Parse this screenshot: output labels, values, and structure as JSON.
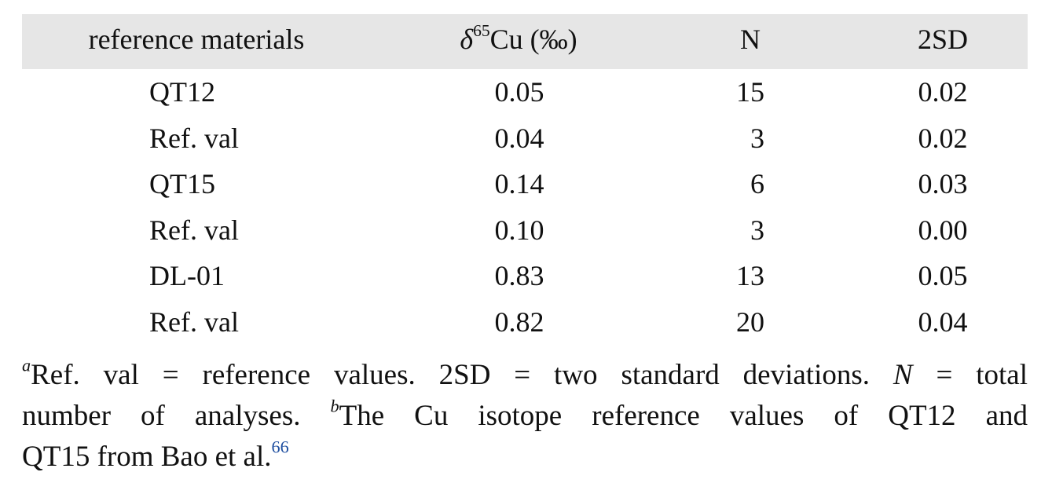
{
  "table": {
    "header": [
      "reference materials",
      [
        "δ",
        "65",
        "Cu (‰)"
      ],
      "N",
      "2SD"
    ],
    "rows": [
      [
        "QT12",
        "0.05",
        "15",
        "0.02"
      ],
      [
        "Ref. val",
        "0.04",
        "3",
        "0.02"
      ],
      [
        "QT15",
        "0.14",
        "6",
        "0.03"
      ],
      [
        "Ref. val",
        "0.10",
        "3",
        "0.00"
      ],
      [
        "DL-01",
        "0.83",
        "13",
        "0.05"
      ],
      [
        "Ref. val",
        "0.82",
        "20",
        "0.04"
      ]
    ]
  },
  "footnote": [
    [
      "a",
      "Ref. val = reference values. 2SD = two standard deviations. ",
      "N",
      " = total"
    ],
    [
      "number of analyses. ",
      "b",
      "The Cu isotope reference values of QT12 and"
    ],
    [
      "QT15 from Bao et al.",
      "66"
    ]
  ]
}
